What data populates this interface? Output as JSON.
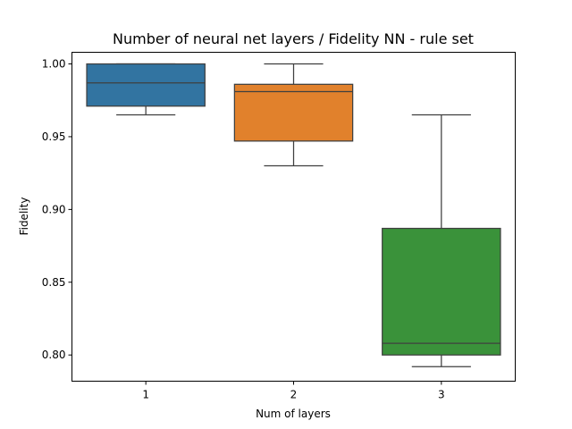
{
  "chart_data": {
    "type": "box",
    "title": "Number of neural net layers / Fidelity NN - rule set",
    "xlabel": "Num of layers",
    "ylabel": "Fidelity",
    "ylim": [
      0.782,
      1.008
    ],
    "yticks": [
      0.8,
      0.85,
      0.9,
      0.95,
      1.0
    ],
    "ytick_labels": [
      "0.80",
      "0.85",
      "0.90",
      "0.95",
      "1.00"
    ],
    "categories": [
      "1",
      "2",
      "3"
    ],
    "boxes": [
      {
        "category": "1",
        "whisker_low": 0.965,
        "q1": 0.971,
        "median": 0.987,
        "q3": 1.0,
        "whisker_high": 1.0,
        "color": "#3274a1"
      },
      {
        "category": "2",
        "whisker_low": 0.93,
        "q1": 0.947,
        "median": 0.981,
        "q3": 0.986,
        "whisker_high": 1.0,
        "color": "#e1812c"
      },
      {
        "category": "3",
        "whisker_low": 0.792,
        "q1": 0.8,
        "median": 0.808,
        "q3": 0.887,
        "whisker_high": 0.965,
        "color": "#3a923a"
      }
    ],
    "grid": false,
    "legend": "none"
  }
}
